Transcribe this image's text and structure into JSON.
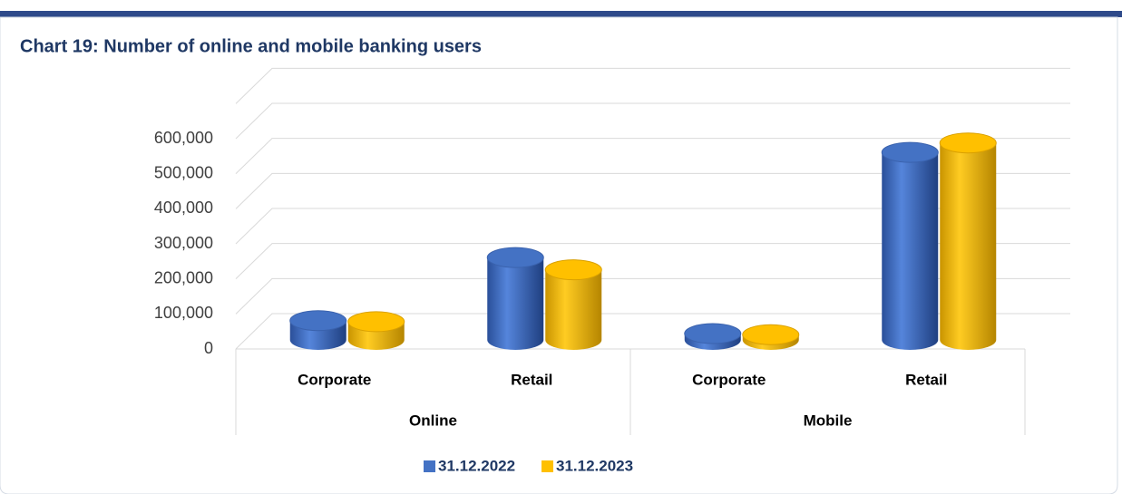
{
  "chart_data": {
    "type": "bar3d",
    "title": "Chart 19: Number of online and mobile banking users",
    "categories": [
      "Corporate",
      "Retail",
      "Corporate",
      "Retail"
    ],
    "category_groups": [
      "Online",
      "Online",
      "Mobile",
      "Mobile"
    ],
    "series": [
      {
        "name": "31.12.2022",
        "color": "#4472c4",
        "values": [
          55000,
          235000,
          18000,
          535000
        ]
      },
      {
        "name": "31.12.2023",
        "color": "#ffc000",
        "values": [
          52000,
          200000,
          15000,
          562000
        ]
      }
    ],
    "ylim": [
      0,
      700000
    ],
    "yticks": [
      0,
      {
        "value": 100000,
        "label": "100,000"
      },
      {
        "value": 200000,
        "label": "200,000"
      },
      {
        "value": 300000,
        "label": "300,000"
      },
      {
        "value": 400000,
        "label": "400,000"
      },
      {
        "value": 500000,
        "label": "500,000"
      },
      {
        "value": 600000,
        "label": "600,000"
      }
    ],
    "grid": true,
    "legend": "bottom"
  }
}
